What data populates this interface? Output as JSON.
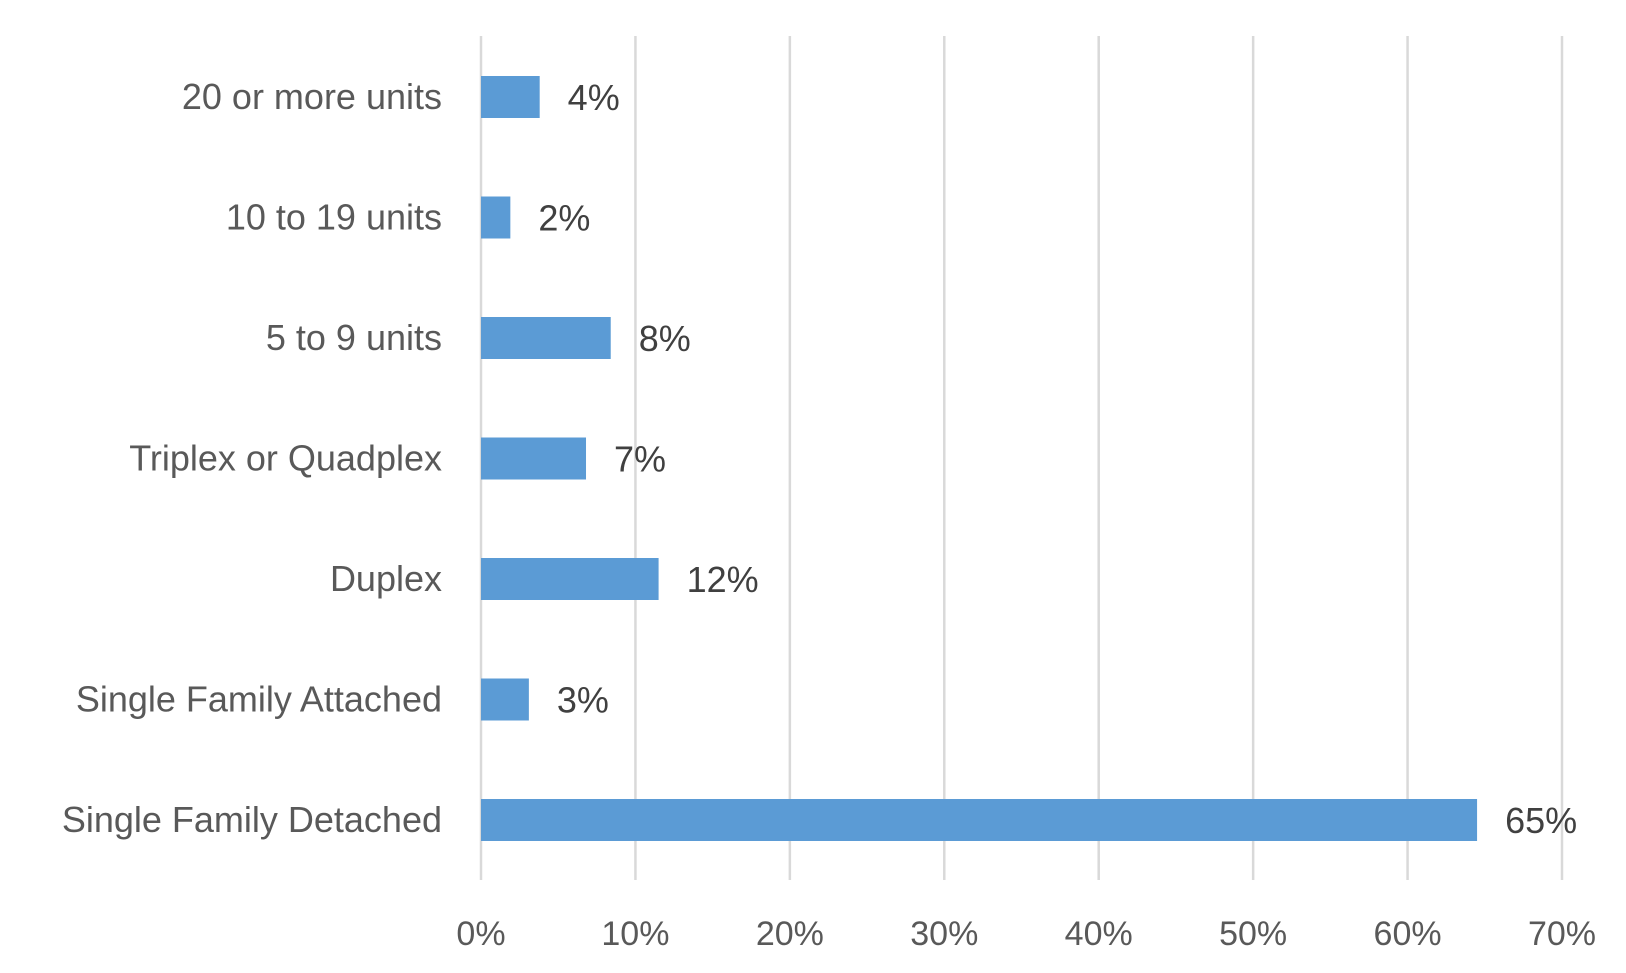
{
  "chart_data": {
    "type": "bar",
    "orientation": "horizontal",
    "title": "",
    "xlabel": "",
    "ylabel": "",
    "categories": [
      "20 or more units",
      "10 to 19 units",
      "5 to 9 units",
      "Triplex or Quadplex",
      "Duplex",
      "Single Family Attached",
      "Single Family Detached"
    ],
    "values": [
      3.8,
      1.9,
      8.4,
      6.8,
      11.5,
      3.1,
      64.5
    ],
    "data_labels": [
      "4%",
      "2%",
      "8%",
      "7%",
      "12%",
      "3%",
      "65%"
    ],
    "xlim": [
      0,
      70
    ],
    "xticks": [
      0,
      10,
      20,
      30,
      40,
      50,
      60,
      70
    ],
    "xtick_labels": [
      "0%",
      "10%",
      "20%",
      "30%",
      "40%",
      "50%",
      "60%",
      "70%"
    ],
    "grid": "vertical",
    "legend": "none",
    "bar_color": "#5b9bd5",
    "grid_color": "#d9d9d9",
    "label_color": "#595959"
  }
}
